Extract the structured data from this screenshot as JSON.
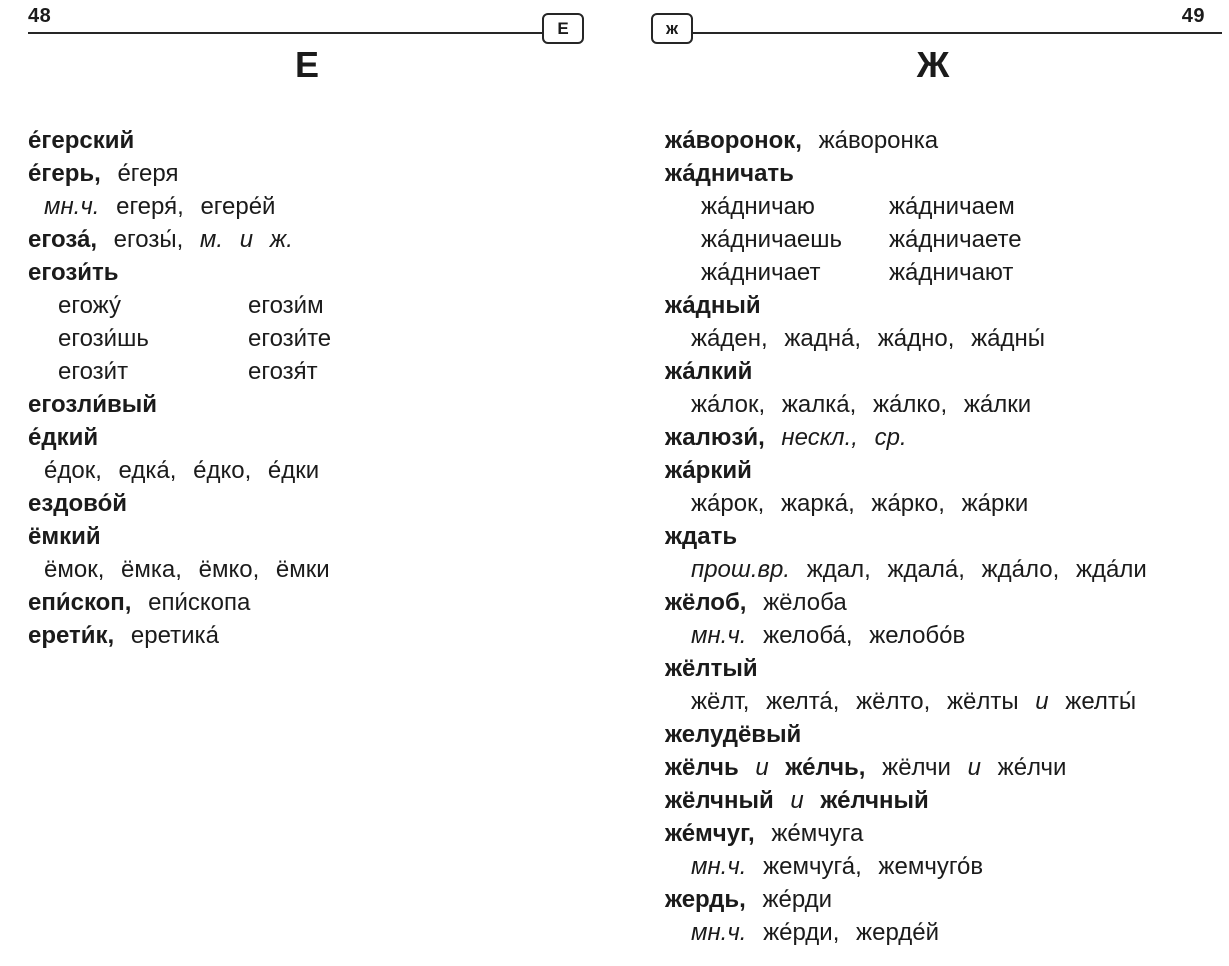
{
  "colors": {
    "ink": "#1b1b1b",
    "background": "#ffffff",
    "rule": "#262626"
  },
  "left_page": {
    "page_number": "48",
    "tab_label": "Е",
    "section_letter": "Е",
    "entries": [
      {
        "kind": "head",
        "seg": [
          {
            "s": "b",
            "t": "е́герский"
          }
        ]
      },
      {
        "kind": "head",
        "seg": [
          {
            "s": "b",
            "t": "е́герь,"
          },
          {
            "s": "n",
            "t": "е́геря"
          }
        ]
      },
      {
        "kind": "form",
        "seg": [
          {
            "s": "i",
            "t": "мн.ч."
          },
          {
            "s": "n",
            "t": "егеря́,"
          },
          {
            "s": "n",
            "t": "егере́й"
          }
        ]
      },
      {
        "kind": "head",
        "seg": [
          {
            "s": "b",
            "t": "егоза́,"
          },
          {
            "s": "n",
            "t": "егозы́,"
          },
          {
            "s": "i",
            "t": "м."
          },
          {
            "s": "i",
            "t": "и"
          },
          {
            "s": "i",
            "t": "ж."
          }
        ]
      },
      {
        "kind": "head",
        "seg": [
          {
            "s": "b",
            "t": "егози́ть"
          }
        ]
      },
      {
        "kind": "conj",
        "col1": "егожу́",
        "col2": "егози́м"
      },
      {
        "kind": "conj",
        "col1": "егози́шь",
        "col2": "егози́те"
      },
      {
        "kind": "conj",
        "col1": "егози́т",
        "col2": "егозя́т"
      },
      {
        "kind": "head",
        "seg": [
          {
            "s": "b",
            "t": "егозли́вый"
          }
        ]
      },
      {
        "kind": "head",
        "seg": [
          {
            "s": "b",
            "t": "е́дкий"
          }
        ]
      },
      {
        "kind": "form",
        "seg": [
          {
            "s": "n",
            "t": "е́док,"
          },
          {
            "s": "n",
            "t": "едка́,"
          },
          {
            "s": "n",
            "t": "е́дко,"
          },
          {
            "s": "n",
            "t": "е́дки"
          }
        ]
      },
      {
        "kind": "head",
        "seg": [
          {
            "s": "b",
            "t": "ездово́й"
          }
        ]
      },
      {
        "kind": "head",
        "seg": [
          {
            "s": "b",
            "t": "ёмкий"
          }
        ]
      },
      {
        "kind": "form",
        "seg": [
          {
            "s": "n",
            "t": "ёмок,"
          },
          {
            "s": "n",
            "t": "ёмка,"
          },
          {
            "s": "n",
            "t": "ёмко,"
          },
          {
            "s": "n",
            "t": "ёмки"
          }
        ]
      },
      {
        "kind": "head",
        "seg": [
          {
            "s": "b",
            "t": "епи́скоп,"
          },
          {
            "s": "n",
            "t": "епи́скопа"
          }
        ]
      },
      {
        "kind": "head",
        "seg": [
          {
            "s": "b",
            "t": "ерети́к,"
          },
          {
            "s": "n",
            "t": "еретика́"
          }
        ]
      }
    ]
  },
  "right_page": {
    "page_number": "49",
    "tab_label": "ж",
    "section_letter": "Ж",
    "entries": [
      {
        "kind": "head",
        "seg": [
          {
            "s": "b",
            "t": "жа́воронок,"
          },
          {
            "s": "n",
            "t": "жа́воронка"
          }
        ]
      },
      {
        "kind": "head",
        "seg": [
          {
            "s": "b",
            "t": "жа́дничать"
          }
        ]
      },
      {
        "kind": "conj",
        "col1": "жа́дничаю",
        "col2": "жа́дничаем"
      },
      {
        "kind": "conj",
        "col1": "жа́дничаешь",
        "col2": "жа́дничаете"
      },
      {
        "kind": "conj",
        "col1": "жа́дничает",
        "col2": "жа́дничают"
      },
      {
        "kind": "head",
        "seg": [
          {
            "s": "b",
            "t": "жа́дный"
          }
        ]
      },
      {
        "kind": "form",
        "seg": [
          {
            "s": "n",
            "t": "жа́ден,"
          },
          {
            "s": "n",
            "t": "жадна́,"
          },
          {
            "s": "n",
            "t": "жа́дно,"
          },
          {
            "s": "n",
            "t": "жа́дны́"
          }
        ]
      },
      {
        "kind": "head",
        "seg": [
          {
            "s": "b",
            "t": "жа́лкий"
          }
        ]
      },
      {
        "kind": "form",
        "seg": [
          {
            "s": "n",
            "t": "жа́лок,"
          },
          {
            "s": "n",
            "t": "жалка́,"
          },
          {
            "s": "n",
            "t": "жа́лко,"
          },
          {
            "s": "n",
            "t": "жа́лки"
          }
        ]
      },
      {
        "kind": "head",
        "seg": [
          {
            "s": "b",
            "t": "жалюзи́,"
          },
          {
            "s": "i",
            "t": "нескл.,"
          },
          {
            "s": "i",
            "t": "ср."
          }
        ]
      },
      {
        "kind": "head",
        "seg": [
          {
            "s": "b",
            "t": "жа́ркий"
          }
        ]
      },
      {
        "kind": "form",
        "seg": [
          {
            "s": "n",
            "t": "жа́рок,"
          },
          {
            "s": "n",
            "t": "жарка́,"
          },
          {
            "s": "n",
            "t": "жа́рко,"
          },
          {
            "s": "n",
            "t": "жа́рки"
          }
        ]
      },
      {
        "kind": "head",
        "seg": [
          {
            "s": "b",
            "t": "ждать"
          }
        ]
      },
      {
        "kind": "form",
        "seg": [
          {
            "s": "i",
            "t": "прош.вр."
          },
          {
            "s": "n",
            "t": "ждал,"
          },
          {
            "s": "n",
            "t": "ждала́,"
          },
          {
            "s": "n",
            "t": "жда́ло,"
          },
          {
            "s": "n",
            "t": "жда́ли"
          }
        ]
      },
      {
        "kind": "head",
        "seg": [
          {
            "s": "b",
            "t": "жёлоб,"
          },
          {
            "s": "n",
            "t": "жёлоба"
          }
        ]
      },
      {
        "kind": "form",
        "seg": [
          {
            "s": "i",
            "t": "мн.ч."
          },
          {
            "s": "n",
            "t": "желоба́,"
          },
          {
            "s": "n",
            "t": "желобо́в"
          }
        ]
      },
      {
        "kind": "head",
        "seg": [
          {
            "s": "b",
            "t": "жёлтый"
          }
        ]
      },
      {
        "kind": "form",
        "seg": [
          {
            "s": "n",
            "t": "жёлт,"
          },
          {
            "s": "n",
            "t": "желта́,"
          },
          {
            "s": "n",
            "t": "жёлто,"
          },
          {
            "s": "n",
            "t": "жёлты"
          },
          {
            "s": "i",
            "t": "и"
          },
          {
            "s": "n",
            "t": "желты́"
          }
        ]
      },
      {
        "kind": "head",
        "seg": [
          {
            "s": "b",
            "t": "желудёвый"
          }
        ]
      },
      {
        "kind": "head",
        "seg": [
          {
            "s": "b",
            "t": "жёлчь"
          },
          {
            "s": "i",
            "t": "и"
          },
          {
            "s": "b",
            "t": "же́лчь,"
          },
          {
            "s": "n",
            "t": "жёлчи"
          },
          {
            "s": "i",
            "t": "и"
          },
          {
            "s": "n",
            "t": "же́лчи"
          }
        ]
      },
      {
        "kind": "head",
        "seg": [
          {
            "s": "b",
            "t": "жёлчный"
          },
          {
            "s": "i",
            "t": "и"
          },
          {
            "s": "b",
            "t": "же́лчный"
          }
        ]
      },
      {
        "kind": "head",
        "seg": [
          {
            "s": "b",
            "t": "же́мчуг,"
          },
          {
            "s": "n",
            "t": "же́мчуга"
          }
        ]
      },
      {
        "kind": "form",
        "seg": [
          {
            "s": "i",
            "t": "мн.ч."
          },
          {
            "s": "n",
            "t": "жемчуга́,"
          },
          {
            "s": "n",
            "t": "жемчуго́в"
          }
        ]
      },
      {
        "kind": "head",
        "seg": [
          {
            "s": "b",
            "t": "жердь,"
          },
          {
            "s": "n",
            "t": "же́рди"
          }
        ]
      },
      {
        "kind": "form",
        "seg": [
          {
            "s": "i",
            "t": "мн.ч."
          },
          {
            "s": "n",
            "t": "же́рди,"
          },
          {
            "s": "n",
            "t": "жерде́й"
          }
        ]
      }
    ]
  }
}
